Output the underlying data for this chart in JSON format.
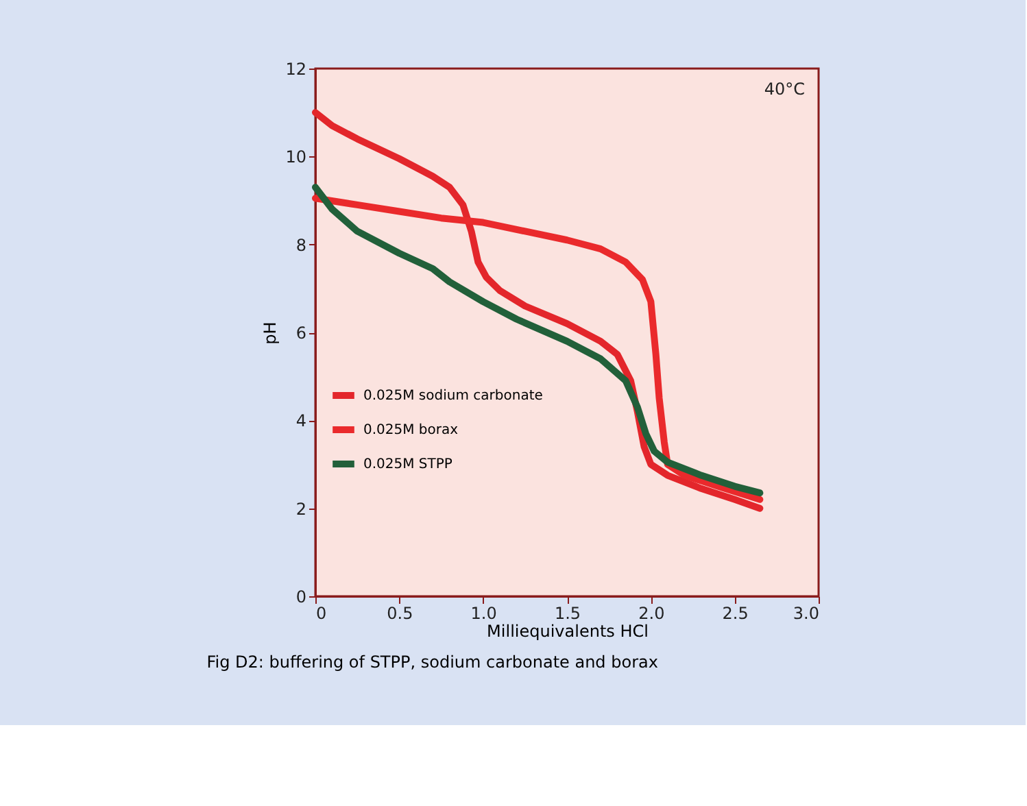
{
  "chart_data": {
    "type": "line",
    "title": "Fig D2: buffering of STPP, sodium carbonate and borax",
    "xlabel": "Milliequivalents HCl",
    "ylabel": "pH",
    "annotations": [
      "40°C"
    ],
    "xlim": [
      0,
      3.0
    ],
    "xticks": [
      {
        "value": 0,
        "label": "0"
      },
      {
        "value": 0.5,
        "label": "0.5"
      },
      {
        "value": 1.0,
        "label": "1.0"
      },
      {
        "value": 1.5,
        "label": "1.5"
      },
      {
        "value": 2.0,
        "label": "2.0"
      },
      {
        "value": 2.5,
        "label": "2.5"
      },
      {
        "value": 3.0,
        "label": "3.0"
      }
    ],
    "ylim": [
      0,
      12
    ],
    "yticks": [
      0,
      2,
      4,
      6,
      8,
      10,
      12
    ],
    "grid": false,
    "legend": "bottom left",
    "marker": "none",
    "line_style": "solid",
    "series": [
      {
        "name": "0.025M sodium carbonate",
        "color": "#e3262b",
        "x": [
          0,
          0.1,
          0.25,
          0.5,
          0.7,
          0.8,
          0.88,
          0.93,
          0.97,
          1.02,
          1.1,
          1.25,
          1.5,
          1.7,
          1.8,
          1.88,
          1.92,
          1.96,
          2.0,
          2.1,
          2.3,
          2.5,
          2.65
        ],
        "values": [
          11.0,
          10.7,
          10.4,
          9.95,
          9.55,
          9.3,
          8.9,
          8.3,
          7.6,
          7.25,
          6.95,
          6.6,
          6.2,
          5.8,
          5.5,
          4.9,
          4.2,
          3.4,
          3.0,
          2.75,
          2.45,
          2.2,
          2.0
        ]
      },
      {
        "name": "0.025M borax",
        "color": "#ea2a2c",
        "x": [
          0,
          0.25,
          0.5,
          0.75,
          1.0,
          1.25,
          1.5,
          1.7,
          1.85,
          1.95,
          2.0,
          2.03,
          2.05,
          2.08,
          2.1,
          2.2,
          2.4,
          2.65
        ],
        "values": [
          9.05,
          8.9,
          8.75,
          8.6,
          8.5,
          8.3,
          8.1,
          7.9,
          7.6,
          7.2,
          6.7,
          5.5,
          4.5,
          3.5,
          3.0,
          2.75,
          2.5,
          2.2
        ]
      },
      {
        "name": "0.025M STPP",
        "color": "#22603a",
        "x": [
          0,
          0.1,
          0.25,
          0.5,
          0.7,
          0.8,
          1.0,
          1.2,
          1.5,
          1.7,
          1.85,
          1.92,
          1.97,
          2.02,
          2.1,
          2.3,
          2.5,
          2.65
        ],
        "values": [
          9.3,
          8.8,
          8.3,
          7.8,
          7.45,
          7.15,
          6.7,
          6.3,
          5.8,
          5.4,
          4.9,
          4.3,
          3.7,
          3.3,
          3.05,
          2.75,
          2.5,
          2.35
        ]
      }
    ]
  }
}
